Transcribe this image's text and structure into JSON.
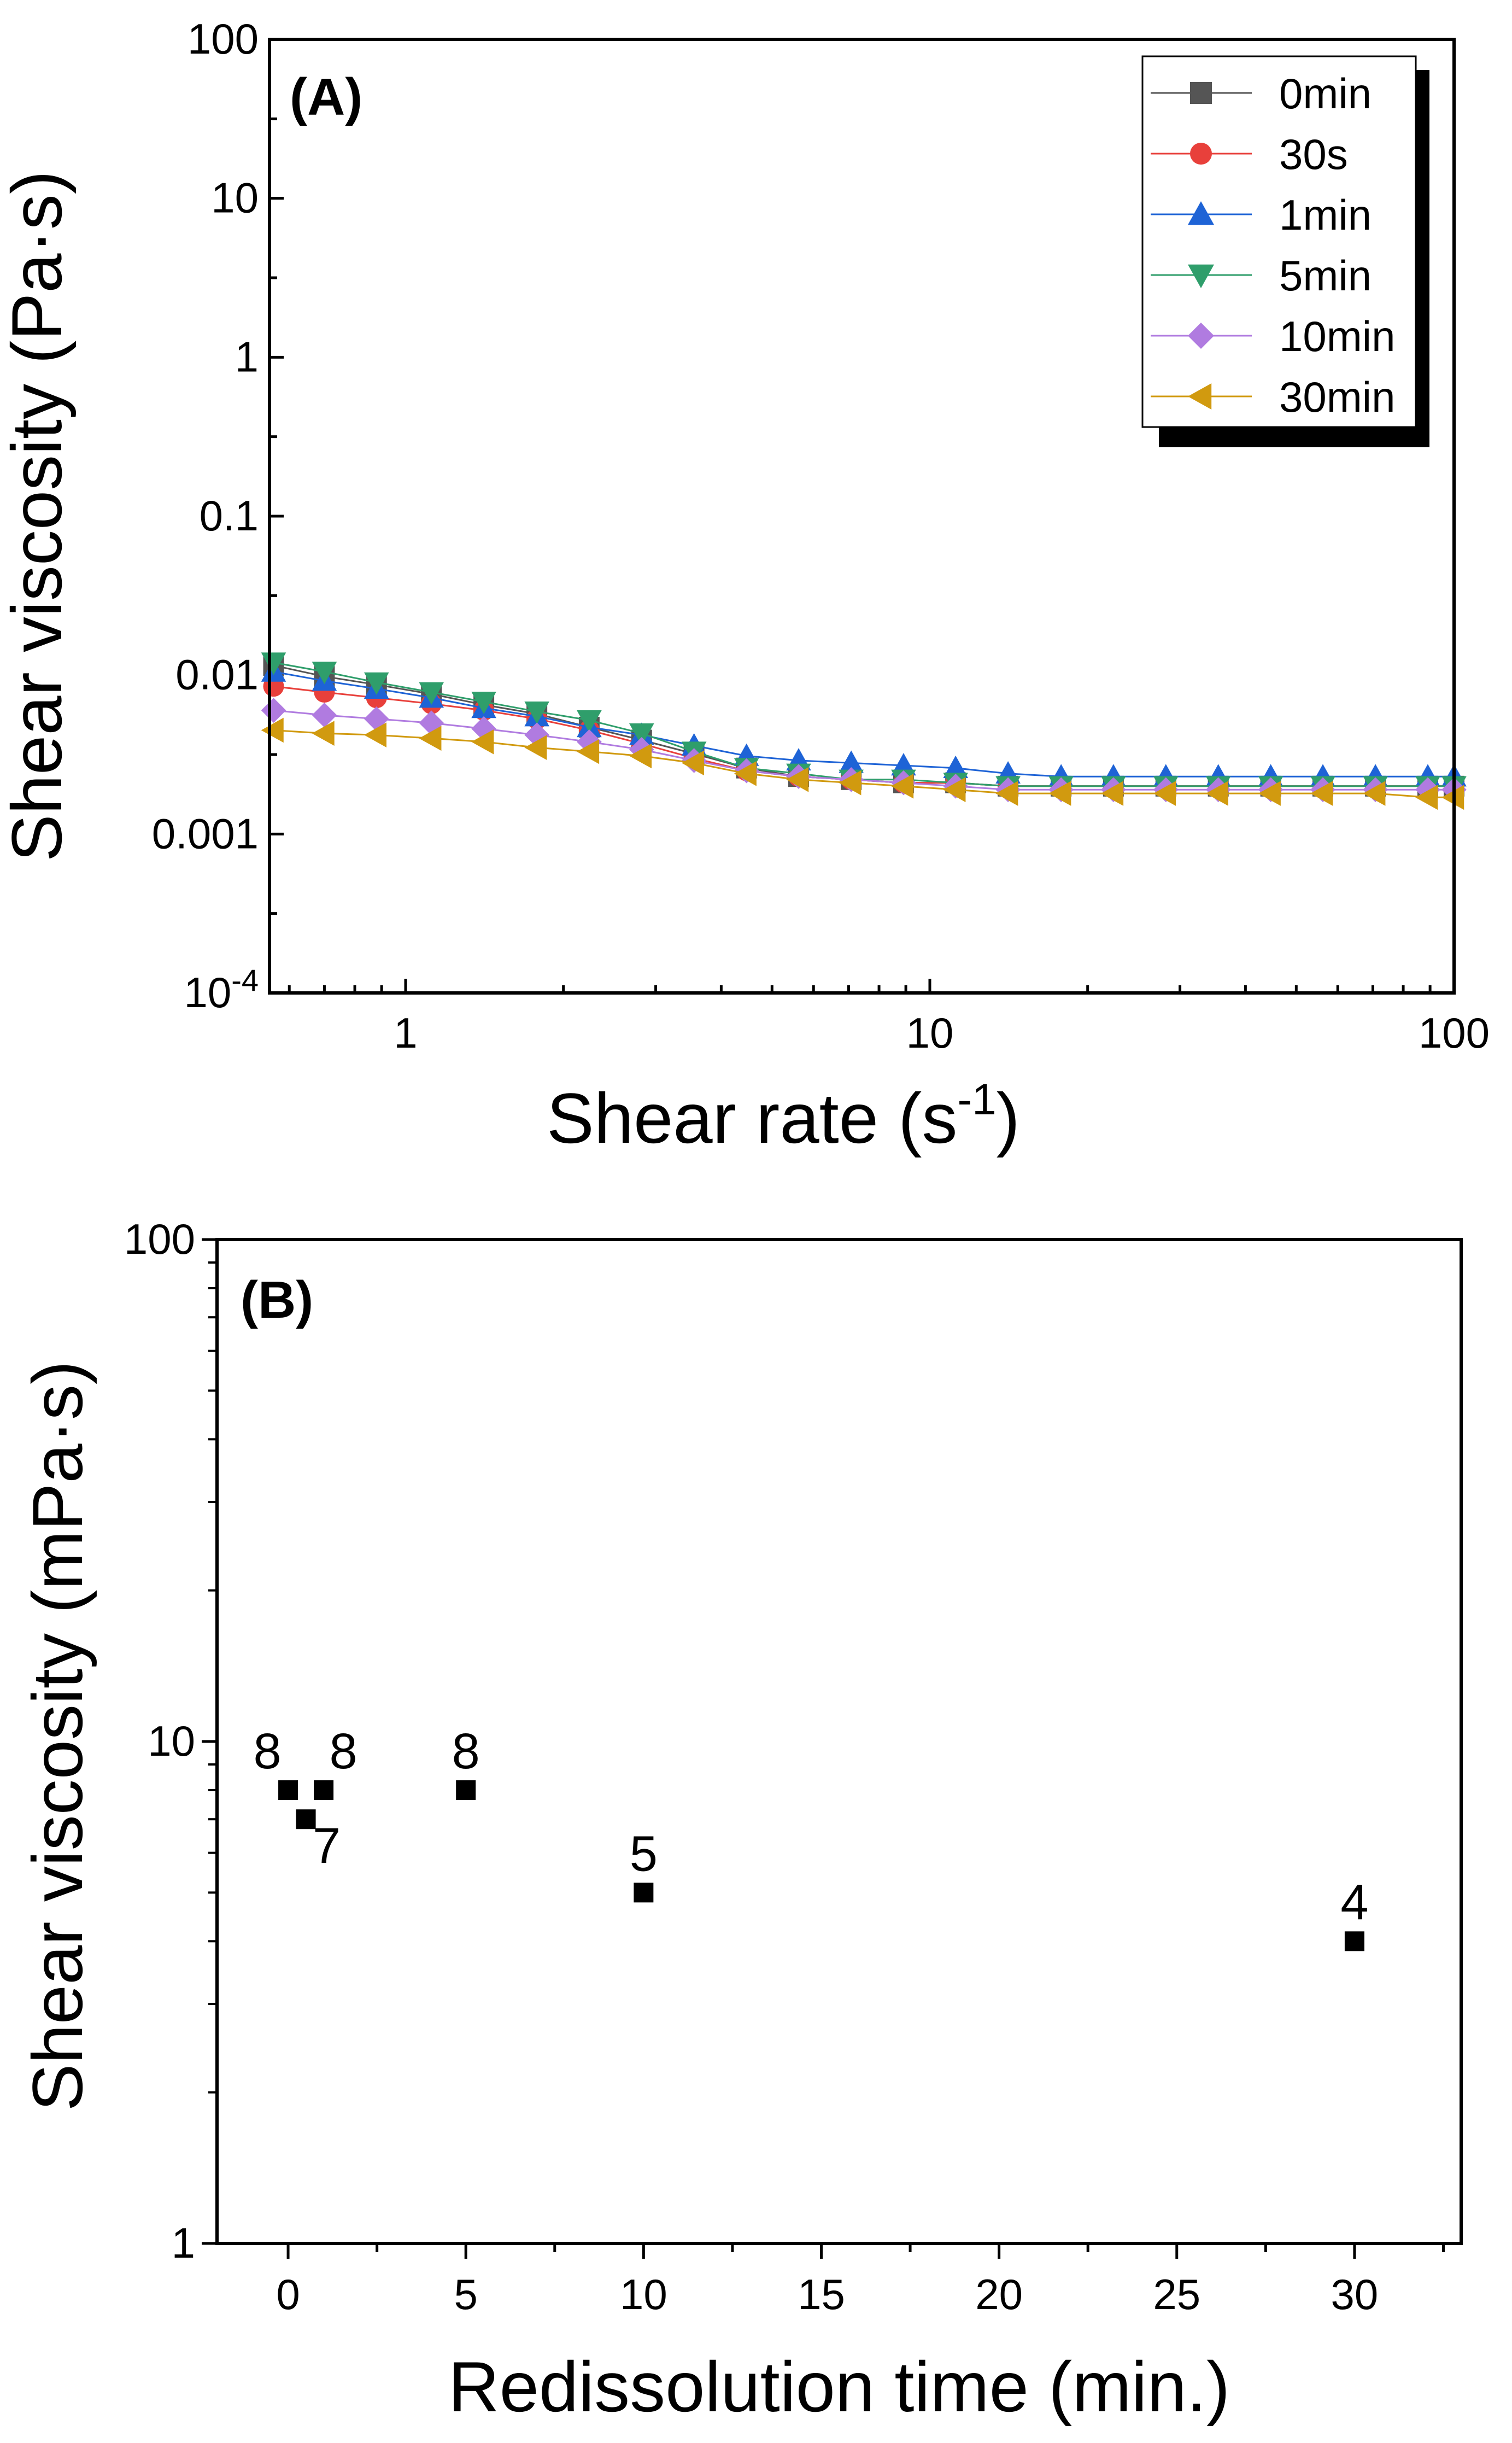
{
  "chart_data": [
    {
      "type": "line",
      "panel_label": "(A)",
      "xlabel": "Shear rate (s",
      "xlabel_sup": "-1",
      "xlabel_end": ")",
      "ylabel": "Shear viscosity (Pa·s)",
      "xscale": "log",
      "yscale": "log",
      "xlim": [
        0.55,
        100
      ],
      "ylim": [
        0.0001,
        100
      ],
      "grid": false,
      "legend_position": "top-right",
      "x_ticks": [
        1,
        10,
        100
      ],
      "x_tick_labels": [
        "1",
        "10",
        "100"
      ],
      "y_ticks": [
        0.0001,
        0.001,
        0.01,
        0.1,
        1,
        10,
        100
      ],
      "y_tick_labels": [
        {
          "base": "10",
          "sup": "-4"
        },
        {
          "base": "0.001"
        },
        {
          "base": "0.01"
        },
        {
          "base": "0.1"
        },
        {
          "base": "1"
        },
        {
          "base": "10"
        },
        {
          "base": "100"
        }
      ],
      "x": [
        0.56,
        0.7,
        0.88,
        1.12,
        1.41,
        1.78,
        2.24,
        2.82,
        3.55,
        4.47,
        5.62,
        7.08,
        8.91,
        11.2,
        14.1,
        17.8,
        22.4,
        28.2,
        35.5,
        44.7,
        56.2,
        70.8,
        89.1,
        100
      ],
      "series": [
        {
          "name": "0min",
          "color": "#555555",
          "marker": "square",
          "values": [
            0.0115,
            0.0098,
            0.0087,
            0.0076,
            0.0065,
            0.0057,
            0.0047,
            0.0039,
            0.0032,
            0.0026,
            0.0023,
            0.0022,
            0.0021,
            0.0021,
            0.002,
            0.002,
            0.002,
            0.002,
            0.002,
            0.002,
            0.002,
            0.002,
            0.002,
            0.002
          ]
        },
        {
          "name": "30s",
          "color": "#e8403b",
          "marker": "circle",
          "values": [
            0.0085,
            0.0078,
            0.0072,
            0.0066,
            0.006,
            0.0053,
            0.0045,
            0.0037,
            0.003,
            0.0025,
            0.0023,
            0.0022,
            0.0021,
            0.0021,
            0.002,
            0.002,
            0.002,
            0.002,
            0.002,
            0.002,
            0.002,
            0.002,
            0.002,
            0.002
          ]
        },
        {
          "name": "1min",
          "color": "#1e63d6",
          "marker": "triangle-up",
          "values": [
            0.0105,
            0.0092,
            0.0082,
            0.0072,
            0.0062,
            0.0055,
            0.0047,
            0.0042,
            0.0036,
            0.0031,
            0.0029,
            0.0028,
            0.0027,
            0.0026,
            0.0024,
            0.0023,
            0.0023,
            0.0023,
            0.0023,
            0.0023,
            0.0023,
            0.0023,
            0.0023,
            0.0023
          ]
        },
        {
          "name": "5min",
          "color": "#2f9e6b",
          "marker": "triangle-down",
          "values": [
            0.012,
            0.0105,
            0.009,
            0.0078,
            0.0068,
            0.0059,
            0.0052,
            0.0043,
            0.0033,
            0.0026,
            0.0024,
            0.0022,
            0.0022,
            0.0021,
            0.002,
            0.002,
            0.002,
            0.002,
            0.002,
            0.002,
            0.002,
            0.002,
            0.002,
            0.002
          ]
        },
        {
          "name": "10min",
          "color": "#b07be0",
          "marker": "diamond",
          "values": [
            0.006,
            0.0056,
            0.0053,
            0.005,
            0.0046,
            0.0042,
            0.0038,
            0.0034,
            0.0029,
            0.0025,
            0.0023,
            0.0022,
            0.0021,
            0.002,
            0.0019,
            0.0019,
            0.0019,
            0.0019,
            0.0019,
            0.0019,
            0.0019,
            0.0019,
            0.0019,
            0.0019
          ]
        },
        {
          "name": "30min",
          "color": "#d19a0f",
          "marker": "triangle-left",
          "values": [
            0.0045,
            0.0043,
            0.0042,
            0.004,
            0.0038,
            0.0035,
            0.0033,
            0.0031,
            0.0028,
            0.0024,
            0.0022,
            0.0021,
            0.002,
            0.0019,
            0.0018,
            0.0018,
            0.0018,
            0.0018,
            0.0018,
            0.0018,
            0.0018,
            0.0018,
            0.0017,
            0.0017
          ]
        }
      ]
    },
    {
      "type": "scatter",
      "panel_label": "(B)",
      "xlabel": "Redissolution time (min.)",
      "ylabel": "Shear viscosity (mPa·s)",
      "xscale": "linear",
      "yscale": "log",
      "xlim": [
        -2,
        33
      ],
      "ylim": [
        1,
        100
      ],
      "grid": false,
      "x_ticks": [
        0,
        5,
        10,
        15,
        20,
        25,
        30
      ],
      "x_tick_labels": [
        "0",
        "5",
        "10",
        "15",
        "20",
        "25",
        "30"
      ],
      "y_ticks": [
        1,
        10,
        100
      ],
      "y_tick_labels": [
        "1",
        "10",
        "100"
      ],
      "x": [
        0,
        0.5,
        1,
        5,
        10,
        30
      ],
      "values": [
        8,
        7,
        8,
        8,
        5,
        4
      ],
      "data_labels": [
        "8",
        "7",
        "8",
        "8",
        "5",
        "4"
      ],
      "color": "#000000",
      "marker": "square"
    }
  ]
}
